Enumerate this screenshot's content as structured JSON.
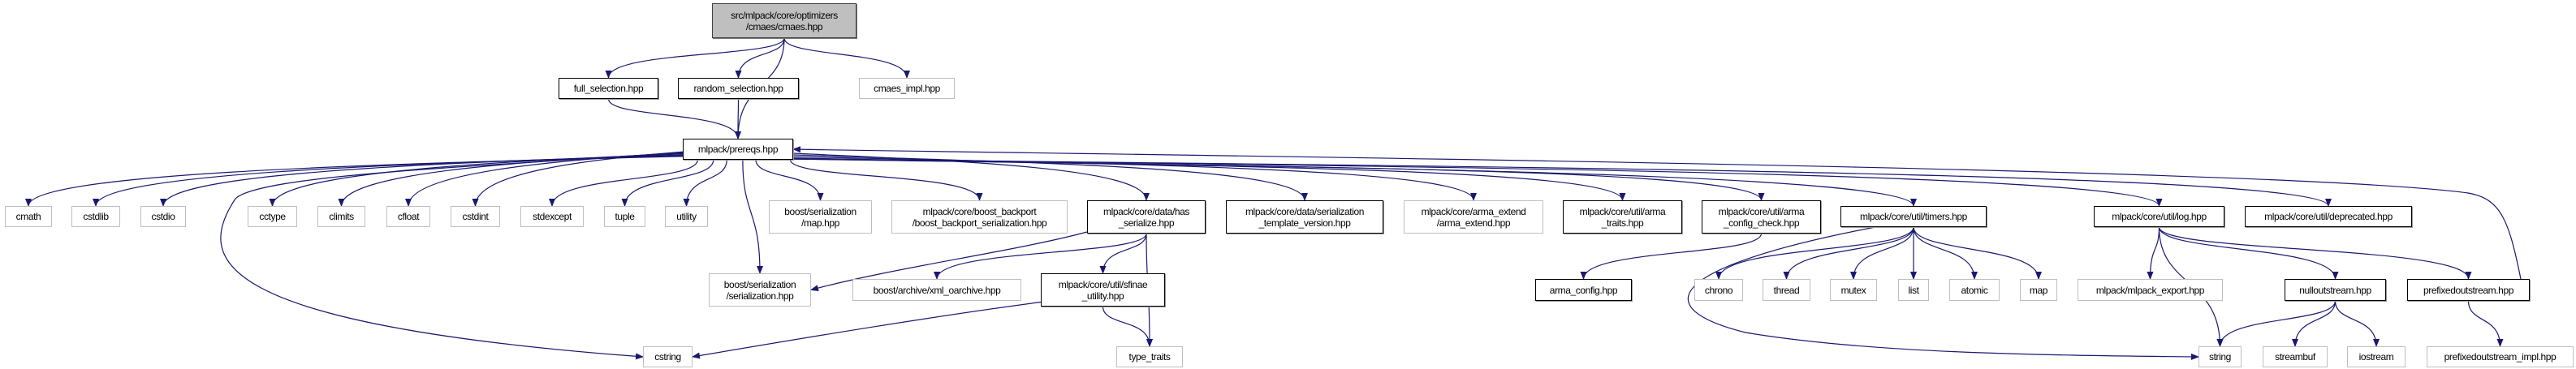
{
  "edge_color": "#191970",
  "nodes": [
    {
      "id": "root",
      "lines": [
        "src/mlpack/core/optimizers",
        "/cmaes/cmaes.hpp"
      ],
      "style": "root"
    },
    {
      "id": "full_selection",
      "lines": [
        "full_selection.hpp"
      ],
      "style": "internal"
    },
    {
      "id": "random_selection",
      "lines": [
        "random_selection.hpp"
      ],
      "style": "internal"
    },
    {
      "id": "cmaes_impl",
      "lines": [
        "cmaes_impl.hpp"
      ],
      "style": "external"
    },
    {
      "id": "prereqs",
      "lines": [
        "mlpack/prereqs.hpp"
      ],
      "style": "internal"
    },
    {
      "id": "cmath",
      "lines": [
        "cmath"
      ],
      "style": "external"
    },
    {
      "id": "cstdlib",
      "lines": [
        "cstdlib"
      ],
      "style": "external"
    },
    {
      "id": "cstdio",
      "lines": [
        "cstdio"
      ],
      "style": "external"
    },
    {
      "id": "cctype",
      "lines": [
        "cctype"
      ],
      "style": "external"
    },
    {
      "id": "climits",
      "lines": [
        "climits"
      ],
      "style": "external"
    },
    {
      "id": "cfloat",
      "lines": [
        "cfloat"
      ],
      "style": "external"
    },
    {
      "id": "cstdint",
      "lines": [
        "cstdint"
      ],
      "style": "external"
    },
    {
      "id": "stdexcept",
      "lines": [
        "stdexcept"
      ],
      "style": "external"
    },
    {
      "id": "tuple",
      "lines": [
        "tuple"
      ],
      "style": "external"
    },
    {
      "id": "utility",
      "lines": [
        "utility"
      ],
      "style": "external"
    },
    {
      "id": "ser_map",
      "lines": [
        "boost/serialization",
        "/map.hpp"
      ],
      "style": "external"
    },
    {
      "id": "boost_backport",
      "lines": [
        "mlpack/core/boost_backport",
        "/boost_backport_serialization.hpp"
      ],
      "style": "external"
    },
    {
      "id": "has_serialize",
      "lines": [
        "mlpack/core/data/has",
        "_serialize.hpp"
      ],
      "style": "internal"
    },
    {
      "id": "ser_template",
      "lines": [
        "mlpack/core/data/serialization",
        "_template_version.hpp"
      ],
      "style": "internal"
    },
    {
      "id": "arma_extend",
      "lines": [
        "mlpack/core/arma_extend",
        "/arma_extend.hpp"
      ],
      "style": "external"
    },
    {
      "id": "arma_traits",
      "lines": [
        "mlpack/core/util/arma",
        "_traits.hpp"
      ],
      "style": "internal"
    },
    {
      "id": "arma_config_check",
      "lines": [
        "mlpack/core/util/arma",
        "_config_check.hpp"
      ],
      "style": "internal"
    },
    {
      "id": "timers",
      "lines": [
        "mlpack/core/util/timers.hpp"
      ],
      "style": "internal"
    },
    {
      "id": "log",
      "lines": [
        "mlpack/core/util/log.hpp"
      ],
      "style": "internal"
    },
    {
      "id": "deprecated",
      "lines": [
        "mlpack/core/util/deprecated.hpp"
      ],
      "style": "internal"
    },
    {
      "id": "serialization",
      "lines": [
        "boost/serialization",
        "/serialization.hpp"
      ],
      "style": "external"
    },
    {
      "id": "xml_oarchive",
      "lines": [
        "boost/archive/xml_oarchive.hpp"
      ],
      "style": "external"
    },
    {
      "id": "sfinae",
      "lines": [
        "mlpack/core/util/sfinae",
        "_utility.hpp"
      ],
      "style": "internal"
    },
    {
      "id": "arma_config",
      "lines": [
        "arma_config.hpp"
      ],
      "style": "internal"
    },
    {
      "id": "chrono",
      "lines": [
        "chrono"
      ],
      "style": "external"
    },
    {
      "id": "thread",
      "lines": [
        "thread"
      ],
      "style": "external"
    },
    {
      "id": "mutex",
      "lines": [
        "mutex"
      ],
      "style": "external"
    },
    {
      "id": "list",
      "lines": [
        "list"
      ],
      "style": "external"
    },
    {
      "id": "atomic",
      "lines": [
        "atomic"
      ],
      "style": "external"
    },
    {
      "id": "map",
      "lines": [
        "map"
      ],
      "style": "external"
    },
    {
      "id": "mlpack_export",
      "lines": [
        "mlpack/mlpack_export.hpp"
      ],
      "style": "external"
    },
    {
      "id": "nulloutstream",
      "lines": [
        "nulloutstream.hpp"
      ],
      "style": "internal"
    },
    {
      "id": "prefixedoutstream",
      "lines": [
        "prefixedoutstream.hpp"
      ],
      "style": "internal"
    },
    {
      "id": "cstring",
      "lines": [
        "cstring"
      ],
      "style": "external"
    },
    {
      "id": "type_traits",
      "lines": [
        "type_traits"
      ],
      "style": "external"
    },
    {
      "id": "string",
      "lines": [
        "string"
      ],
      "style": "external"
    },
    {
      "id": "streambuf",
      "lines": [
        "streambuf"
      ],
      "style": "external"
    },
    {
      "id": "iostream",
      "lines": [
        "iostream"
      ],
      "style": "external"
    },
    {
      "id": "prefixed_impl",
      "lines": [
        "prefixedoutstream_impl.hpp"
      ],
      "style": "external"
    }
  ],
  "edges": [
    [
      "root",
      "full_selection"
    ],
    [
      "root",
      "random_selection"
    ],
    [
      "root",
      "prereqs"
    ],
    [
      "root",
      "cmaes_impl"
    ],
    [
      "full_selection",
      "prereqs"
    ],
    [
      "random_selection",
      "prereqs"
    ],
    [
      "prereqs",
      "cmath"
    ],
    [
      "prereqs",
      "cstdlib"
    ],
    [
      "prereqs",
      "cstdio"
    ],
    [
      "prereqs",
      "cctype"
    ],
    [
      "prereqs",
      "climits"
    ],
    [
      "prereqs",
      "cfloat"
    ],
    [
      "prereqs",
      "cstdint"
    ],
    [
      "prereqs",
      "stdexcept"
    ],
    [
      "prereqs",
      "tuple"
    ],
    [
      "prereqs",
      "utility"
    ],
    [
      "prereqs",
      "ser_map"
    ],
    [
      "prereqs",
      "serialization"
    ],
    [
      "prereqs",
      "cstring"
    ],
    [
      "prereqs",
      "boost_backport"
    ],
    [
      "prereqs",
      "has_serialize"
    ],
    [
      "prereqs",
      "ser_template"
    ],
    [
      "prereqs",
      "arma_extend"
    ],
    [
      "prereqs",
      "arma_traits"
    ],
    [
      "prereqs",
      "arma_config_check"
    ],
    [
      "prereqs",
      "timers"
    ],
    [
      "prereqs",
      "log"
    ],
    [
      "prereqs",
      "deprecated"
    ],
    [
      "prefixedoutstream",
      "prereqs"
    ],
    [
      "has_serialize",
      "serialization"
    ],
    [
      "has_serialize",
      "xml_oarchive"
    ],
    [
      "has_serialize",
      "sfinae"
    ],
    [
      "has_serialize",
      "type_traits"
    ],
    [
      "sfinae",
      "cstring"
    ],
    [
      "sfinae",
      "type_traits"
    ],
    [
      "arma_config_check",
      "arma_config"
    ],
    [
      "timers",
      "chrono"
    ],
    [
      "timers",
      "thread"
    ],
    [
      "timers",
      "mutex"
    ],
    [
      "timers",
      "list"
    ],
    [
      "timers",
      "atomic"
    ],
    [
      "timers",
      "map"
    ],
    [
      "timers",
      "string"
    ],
    [
      "log",
      "mlpack_export"
    ],
    [
      "log",
      "string"
    ],
    [
      "log",
      "nulloutstream"
    ],
    [
      "log",
      "prefixedoutstream"
    ],
    [
      "nulloutstream",
      "string"
    ],
    [
      "nulloutstream",
      "streambuf"
    ],
    [
      "nulloutstream",
      "iostream"
    ],
    [
      "prefixedoutstream",
      "prefixed_impl"
    ]
  ]
}
